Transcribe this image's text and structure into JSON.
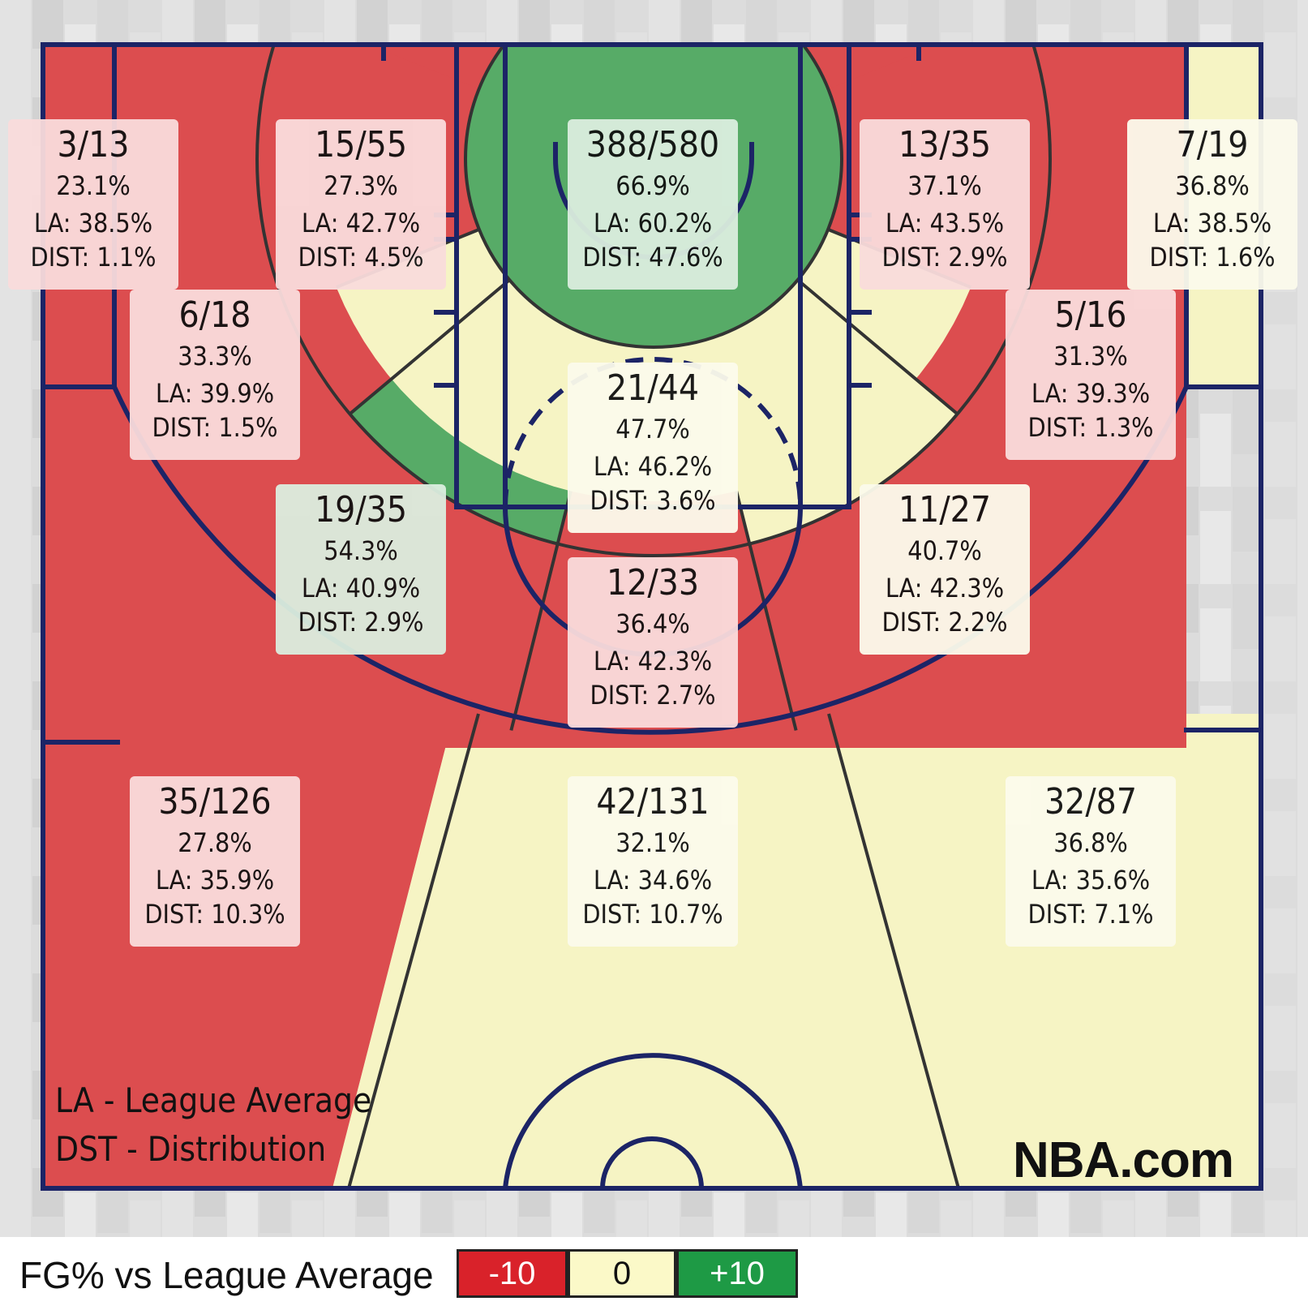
{
  "chart_data": {
    "type": "shot-chart-zones",
    "zones": [
      {
        "id": "left-corner-3",
        "made": 3,
        "attempted": 13,
        "label": "3/13",
        "fg_pct": "23.1%",
        "league_avg": "LA: 38.5%",
        "distribution": "DIST: 1.1%",
        "rating": "below"
      },
      {
        "id": "left-wing-3-upper",
        "made": 15,
        "attempted": 55,
        "label": "15/55",
        "fg_pct": "27.3%",
        "league_avg": "LA: 42.7%",
        "distribution": "DIST: 4.5%",
        "rating": "below"
      },
      {
        "id": "restricted-area",
        "made": 388,
        "attempted": 580,
        "label": "388/580",
        "fg_pct": "66.9%",
        "league_avg": "LA: 60.2%",
        "distribution": "DIST: 47.6%",
        "rating": "above"
      },
      {
        "id": "right-wing-3-upper",
        "made": 13,
        "attempted": 35,
        "label": "13/35",
        "fg_pct": "37.1%",
        "league_avg": "LA: 43.5%",
        "distribution": "DIST: 2.9%",
        "rating": "below"
      },
      {
        "id": "right-corner-3",
        "made": 7,
        "attempted": 19,
        "label": "7/19",
        "fg_pct": "36.8%",
        "league_avg": "LA: 38.5%",
        "distribution": "DIST: 1.6%",
        "rating": "neutral"
      },
      {
        "id": "left-baseline-mid",
        "made": 6,
        "attempted": 18,
        "label": "6/18",
        "fg_pct": "33.3%",
        "league_avg": "LA: 39.9%",
        "distribution": "DIST: 1.5%",
        "rating": "below"
      },
      {
        "id": "paint-non-ra",
        "made": 21,
        "attempted": 44,
        "label": "21/44",
        "fg_pct": "47.7%",
        "league_avg": "LA: 46.2%",
        "distribution": "DIST: 3.6%",
        "rating": "neutral"
      },
      {
        "id": "right-baseline-mid",
        "made": 5,
        "attempted": 16,
        "label": "5/16",
        "fg_pct": "31.3%",
        "league_avg": "LA: 39.3%",
        "distribution": "DIST: 1.3%",
        "rating": "below"
      },
      {
        "id": "left-elbow-mid",
        "made": 19,
        "attempted": 35,
        "label": "19/35",
        "fg_pct": "54.3%",
        "league_avg": "LA: 40.9%",
        "distribution": "DIST: 2.9%",
        "rating": "above"
      },
      {
        "id": "right-elbow-mid",
        "made": 11,
        "attempted": 27,
        "label": "11/27",
        "fg_pct": "40.7%",
        "league_avg": "LA: 42.3%",
        "distribution": "DIST: 2.2%",
        "rating": "neutral"
      },
      {
        "id": "top-key-mid",
        "made": 12,
        "attempted": 33,
        "label": "12/33",
        "fg_pct": "36.4%",
        "league_avg": "LA: 42.3%",
        "distribution": "DIST: 2.7%",
        "rating": "below"
      },
      {
        "id": "left-wing-3",
        "made": 35,
        "attempted": 126,
        "label": "35/126",
        "fg_pct": "27.8%",
        "league_avg": "LA: 35.9%",
        "distribution": "DIST: 10.3%",
        "rating": "below"
      },
      {
        "id": "top-key-3",
        "made": 42,
        "attempted": 131,
        "label": "42/131",
        "fg_pct": "32.1%",
        "league_avg": "LA: 34.6%",
        "distribution": "DIST: 10.7%",
        "rating": "neutral"
      },
      {
        "id": "right-wing-3",
        "made": 32,
        "attempted": 87,
        "label": "32/87",
        "fg_pct": "36.8%",
        "league_avg": "LA: 35.6%",
        "distribution": "DIST: 7.1%",
        "rating": "neutral"
      }
    ],
    "color_scale": {
      "below": "#dc4d4f",
      "neutral": "#f6f4c4",
      "above": "#57ab67"
    },
    "label_backgrounds": {
      "below": "#fadcdc",
      "neutral": "#fcfbec",
      "above": "#dbeedf"
    }
  },
  "legend": {
    "line1": "LA - League Average",
    "line2": "DST - Distribution"
  },
  "brand": "NBA.com",
  "footer": {
    "title": "FG% vs League Average",
    "scale": [
      {
        "label": "-10",
        "color": "#d9222a",
        "text_color": "#ffffff"
      },
      {
        "label": "0",
        "color": "#fbf9c8",
        "text_color": "#111111"
      },
      {
        "label": "+10",
        "color": "#1e9a45",
        "text_color": "#ffffff"
      }
    ]
  },
  "colors": {
    "court_line": "#1c2466",
    "zone_border": "#333333"
  }
}
